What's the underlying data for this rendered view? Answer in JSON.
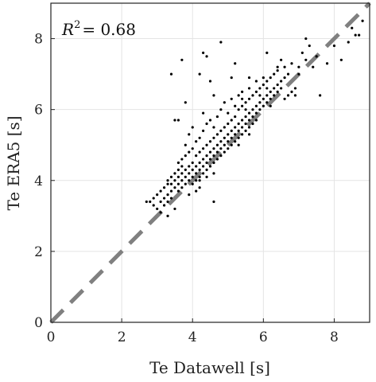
{
  "chart_data": {
    "type": "scatter",
    "xlabel": "Te Datawell [s]",
    "ylabel": "Te ERA5 [s]",
    "xlim": [
      0,
      9
    ],
    "ylim": [
      0,
      9
    ],
    "xticks": [
      "0",
      "2",
      "4",
      "6",
      "8"
    ],
    "yticks": [
      "0",
      "2",
      "4",
      "6",
      "8"
    ],
    "grid": true,
    "annotation": {
      "prefix": "R",
      "superscript": "2",
      "value": "= 0.68"
    },
    "reference_line": {
      "style": "dashed",
      "color": "#808080",
      "from": [
        0,
        0
      ],
      "to": [
        9,
        9
      ]
    },
    "point_color": "#000000",
    "points": [
      [
        2.7,
        3.4
      ],
      [
        2.8,
        3.4
      ],
      [
        2.9,
        3.3
      ],
      [
        2.9,
        3.5
      ],
      [
        3.0,
        3.2
      ],
      [
        3.0,
        3.6
      ],
      [
        3.1,
        3.4
      ],
      [
        3.1,
        3.7
      ],
      [
        3.1,
        3.1
      ],
      [
        3.2,
        3.3
      ],
      [
        3.2,
        3.8
      ],
      [
        3.2,
        3.5
      ],
      [
        3.3,
        3.6
      ],
      [
        3.3,
        3.9
      ],
      [
        3.3,
        3.4
      ],
      [
        3.3,
        4.0
      ],
      [
        3.4,
        3.7
      ],
      [
        3.4,
        4.1
      ],
      [
        3.4,
        3.5
      ],
      [
        3.4,
        3.9
      ],
      [
        3.5,
        3.8
      ],
      [
        3.5,
        4.2
      ],
      [
        3.5,
        4.0
      ],
      [
        3.5,
        5.7
      ],
      [
        3.6,
        3.9
      ],
      [
        3.6,
        4.3
      ],
      [
        3.6,
        4.1
      ],
      [
        3.6,
        3.7
      ],
      [
        3.6,
        4.5
      ],
      [
        3.6,
        5.7
      ],
      [
        3.7,
        4.0
      ],
      [
        3.7,
        4.2
      ],
      [
        3.7,
        4.6
      ],
      [
        3.7,
        3.8
      ],
      [
        3.7,
        4.4
      ],
      [
        3.8,
        4.1
      ],
      [
        3.8,
        4.3
      ],
      [
        3.8,
        4.7
      ],
      [
        3.8,
        3.9
      ],
      [
        3.8,
        5.0
      ],
      [
        3.8,
        6.2
      ],
      [
        3.9,
        4.2
      ],
      [
        3.9,
        4.4
      ],
      [
        3.9,
        4.0
      ],
      [
        3.9,
        4.8
      ],
      [
        3.9,
        5.3
      ],
      [
        4.0,
        4.1
      ],
      [
        4.0,
        4.3
      ],
      [
        4.0,
        4.5
      ],
      [
        4.0,
        3.9
      ],
      [
        4.0,
        4.9
      ],
      [
        4.0,
        5.5
      ],
      [
        4.1,
        4.2
      ],
      [
        4.1,
        4.4
      ],
      [
        4.1,
        4.0
      ],
      [
        4.1,
        4.7
      ],
      [
        4.1,
        5.1
      ],
      [
        4.2,
        4.3
      ],
      [
        4.2,
        4.5
      ],
      [
        4.2,
        4.1
      ],
      [
        4.2,
        4.8
      ],
      [
        4.2,
        5.2
      ],
      [
        4.2,
        3.8
      ],
      [
        4.3,
        4.4
      ],
      [
        4.3,
        4.6
      ],
      [
        4.3,
        4.2
      ],
      [
        4.3,
        4.9
      ],
      [
        4.3,
        5.4
      ],
      [
        4.3,
        5.9
      ],
      [
        4.4,
        4.5
      ],
      [
        4.4,
        4.7
      ],
      [
        4.4,
        4.3
      ],
      [
        4.4,
        5.0
      ],
      [
        4.4,
        5.6
      ],
      [
        4.4,
        4.1
      ],
      [
        4.5,
        4.6
      ],
      [
        4.5,
        4.8
      ],
      [
        4.5,
        4.4
      ],
      [
        4.5,
        5.1
      ],
      [
        4.5,
        5.7
      ],
      [
        4.6,
        4.7
      ],
      [
        4.6,
        4.9
      ],
      [
        4.6,
        4.5
      ],
      [
        4.6,
        5.2
      ],
      [
        4.6,
        5.5
      ],
      [
        4.6,
        3.4
      ],
      [
        4.7,
        4.8
      ],
      [
        4.7,
        5.0
      ],
      [
        4.7,
        4.6
      ],
      [
        4.7,
        5.3
      ],
      [
        4.7,
        5.8
      ],
      [
        4.8,
        4.9
      ],
      [
        4.8,
        5.1
      ],
      [
        4.8,
        4.7
      ],
      [
        4.8,
        5.4
      ],
      [
        4.8,
        6.0
      ],
      [
        4.9,
        5.0
      ],
      [
        4.9,
        5.2
      ],
      [
        4.9,
        4.8
      ],
      [
        4.9,
        5.5
      ],
      [
        4.9,
        6.2
      ],
      [
        5.0,
        5.1
      ],
      [
        5.0,
        5.3
      ],
      [
        5.0,
        4.9
      ],
      [
        5.0,
        5.6
      ],
      [
        5.0,
        5.9
      ],
      [
        5.1,
        5.2
      ],
      [
        5.1,
        5.4
      ],
      [
        5.1,
        5.0
      ],
      [
        5.1,
        5.7
      ],
      [
        5.1,
        6.3
      ],
      [
        5.2,
        5.3
      ],
      [
        5.2,
        5.5
      ],
      [
        5.2,
        5.1
      ],
      [
        5.2,
        5.8
      ],
      [
        5.2,
        6.1
      ],
      [
        5.3,
        5.4
      ],
      [
        5.3,
        5.6
      ],
      [
        5.3,
        5.2
      ],
      [
        5.3,
        6.0
      ],
      [
        5.3,
        6.4
      ],
      [
        5.4,
        5.5
      ],
      [
        5.4,
        5.7
      ],
      [
        5.4,
        5.3
      ],
      [
        5.4,
        6.1
      ],
      [
        5.4,
        6.5
      ],
      [
        5.5,
        5.6
      ],
      [
        5.5,
        5.8
      ],
      [
        5.5,
        5.4
      ],
      [
        5.5,
        6.2
      ],
      [
        5.5,
        6.0
      ],
      [
        5.6,
        5.7
      ],
      [
        5.6,
        5.9
      ],
      [
        5.6,
        5.5
      ],
      [
        5.6,
        6.3
      ],
      [
        5.6,
        6.6
      ],
      [
        5.7,
        5.8
      ],
      [
        5.7,
        6.0
      ],
      [
        5.7,
        5.6
      ],
      [
        5.7,
        6.4
      ],
      [
        5.8,
        5.9
      ],
      [
        5.8,
        6.1
      ],
      [
        5.8,
        5.7
      ],
      [
        5.8,
        6.5
      ],
      [
        5.8,
        6.8
      ],
      [
        5.9,
        6.0
      ],
      [
        5.9,
        6.2
      ],
      [
        5.9,
        6.6
      ],
      [
        6.0,
        6.1
      ],
      [
        6.0,
        6.3
      ],
      [
        6.0,
        6.7
      ],
      [
        6.0,
        6.9
      ],
      [
        6.1,
        6.2
      ],
      [
        6.1,
        6.4
      ],
      [
        6.1,
        6.8
      ],
      [
        6.2,
        6.3
      ],
      [
        6.2,
        6.5
      ],
      [
        6.2,
        6.9
      ],
      [
        6.3,
        6.4
      ],
      [
        6.3,
        6.6
      ],
      [
        6.3,
        7.0
      ],
      [
        6.4,
        6.5
      ],
      [
        6.4,
        6.7
      ],
      [
        6.5,
        6.6
      ],
      [
        6.5,
        6.8
      ],
      [
        6.6,
        6.3
      ],
      [
        6.6,
        6.9
      ],
      [
        6.7,
        6.4
      ],
      [
        6.7,
        7.0
      ],
      [
        6.8,
        6.5
      ],
      [
        6.9,
        6.6
      ],
      [
        7.0,
        7.0
      ],
      [
        7.0,
        7.2
      ],
      [
        7.1,
        7.6
      ],
      [
        7.2,
        7.4
      ],
      [
        7.2,
        8.0
      ],
      [
        7.3,
        7.8
      ],
      [
        7.4,
        7.2
      ],
      [
        7.5,
        7.5
      ],
      [
        7.6,
        6.4
      ],
      [
        7.8,
        7.3
      ],
      [
        8.0,
        7.8
      ],
      [
        8.2,
        7.4
      ],
      [
        8.4,
        7.9
      ],
      [
        8.5,
        8.3
      ],
      [
        8.6,
        8.1
      ],
      [
        8.7,
        8.1
      ],
      [
        8.8,
        8.5
      ],
      [
        3.4,
        7.0
      ],
      [
        3.7,
        7.4
      ],
      [
        4.2,
        7.0
      ],
      [
        4.3,
        7.6
      ],
      [
        4.4,
        7.5
      ],
      [
        4.8,
        7.9
      ],
      [
        5.2,
        7.3
      ],
      [
        5.1,
        6.9
      ],
      [
        4.5,
        6.8
      ],
      [
        4.6,
        6.4
      ],
      [
        3.9,
        3.6
      ],
      [
        3.3,
        3.0
      ],
      [
        3.5,
        3.2
      ],
      [
        4.1,
        3.7
      ],
      [
        4.2,
        4.0
      ],
      [
        4.6,
        4.2
      ],
      [
        5.3,
        5.0
      ],
      [
        5.6,
        5.3
      ],
      [
        6.2,
        6.1
      ],
      [
        6.4,
        7.1
      ],
      [
        6.6,
        7.2
      ],
      [
        6.9,
        6.4
      ],
      [
        6.1,
        7.6
      ],
      [
        6.5,
        7.4
      ],
      [
        6.8,
        7.3
      ],
      [
        6.4,
        7.2
      ],
      [
        6.1,
        6.6
      ],
      [
        5.9,
        6.4
      ],
      [
        5.6,
        6.9
      ],
      [
        5.4,
        6.3
      ]
    ]
  }
}
